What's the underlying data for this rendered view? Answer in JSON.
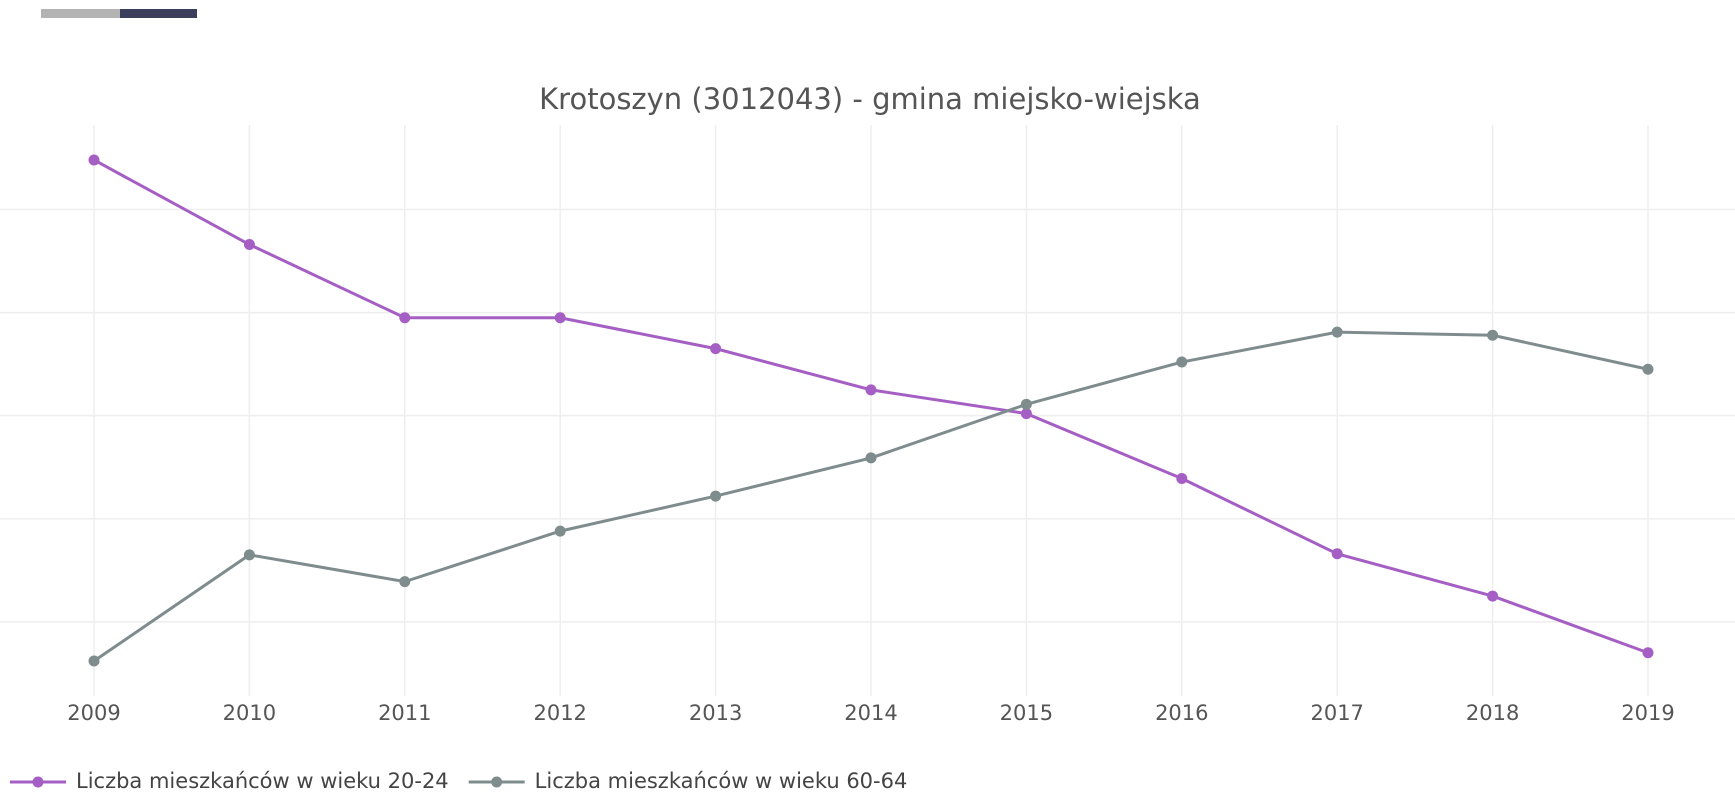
{
  "chart_data": {
    "type": "line",
    "title": "Krotoszyn (3012043) - gmina miejsko-wiejska",
    "categories": [
      "2009",
      "2010",
      "2011",
      "2012",
      "2013",
      "2014",
      "2015",
      "2016",
      "2017",
      "2018",
      "2019"
    ],
    "series": [
      {
        "name": "Liczba mieszkańców w wieku 20-24",
        "color": "#a55fc4",
        "values": [
          5.48,
          4.66,
          3.95,
          3.95,
          3.65,
          3.25,
          3.02,
          2.39,
          1.66,
          1.25,
          0.7
        ]
      },
      {
        "name": "Liczba mieszkańców w wieku 60-64",
        "color": "#7f8c8d",
        "values": [
          0.62,
          1.65,
          1.39,
          1.88,
          2.22,
          2.59,
          3.11,
          3.52,
          3.81,
          3.78,
          3.45
        ]
      }
    ],
    "ylim": [
      0.3,
      5.8
    ],
    "yticks": [
      1,
      2,
      3,
      4,
      5
    ],
    "ytick_labels": false,
    "grid": true
  }
}
